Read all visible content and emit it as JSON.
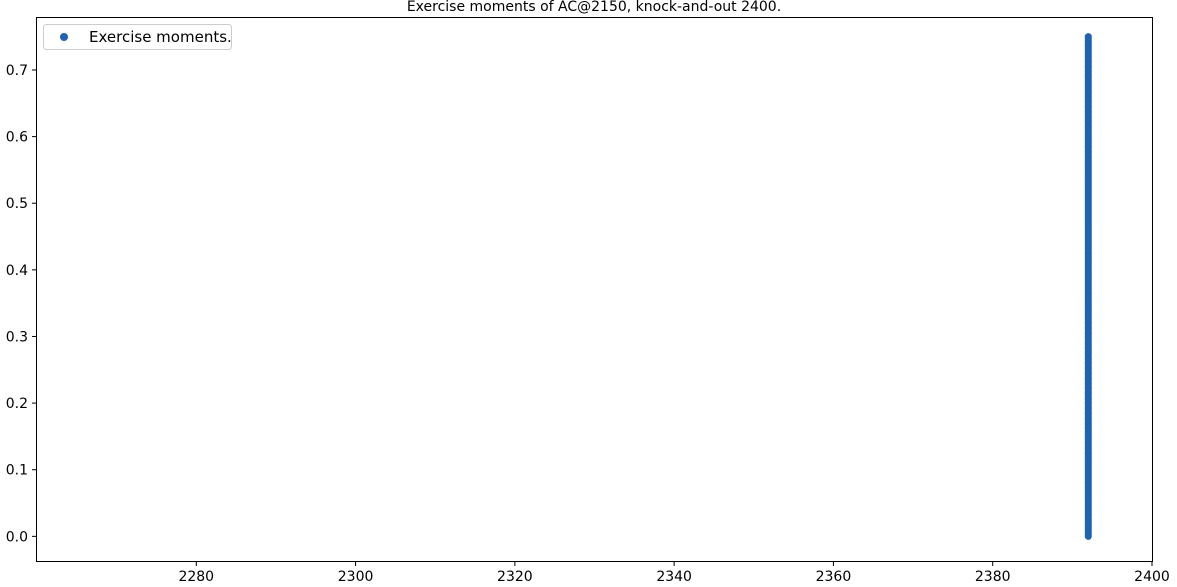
{
  "chart_data": {
    "type": "scatter",
    "title": "Exercise moments of AC@2150, knock-and-out 2400.",
    "xlabel": "",
    "ylabel": "",
    "xlim": [
      2260,
      2400
    ],
    "ylim": [
      -0.037,
      0.778
    ],
    "x_ticks": [
      2280,
      2300,
      2320,
      2340,
      2360,
      2380,
      2400
    ],
    "x_tick_labels": [
      "2280",
      "2300",
      "2320",
      "2340",
      "2360",
      "2380",
      "2400"
    ],
    "y_ticks": [
      0.0,
      0.1,
      0.2,
      0.3,
      0.4,
      0.5,
      0.6,
      0.7
    ],
    "y_tick_labels": [
      "0.0",
      "0.1",
      "0.2",
      "0.3",
      "0.4",
      "0.5",
      "0.6",
      "0.7"
    ],
    "grid": false,
    "legend": {
      "placement": "top-left",
      "entries": [
        "Exercise moments."
      ]
    },
    "series": [
      {
        "name": "Exercise moments.",
        "color": "#1f62b4",
        "x": 2392,
        "y_from": 0.0,
        "y_to": 0.75,
        "y_step": 0.0025
      }
    ]
  }
}
